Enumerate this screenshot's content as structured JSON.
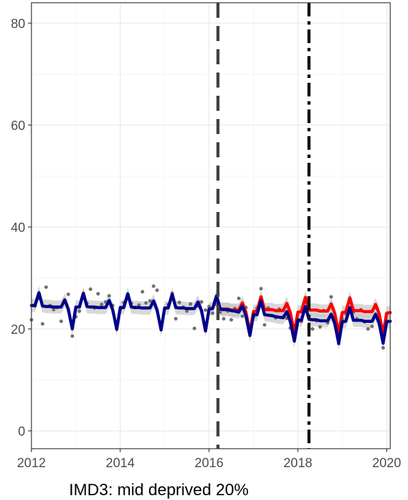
{
  "caption": "IMD3: mid deprived 20%",
  "colors": {
    "observed_points": "#707070",
    "counterfactual_line": "#ff0000",
    "fitted_line": "#00008b",
    "ci_band": "#c8c8c8",
    "vline_dashed": "#404040",
    "vline_dotdash": "#111111",
    "grid_major": "#ebebeb",
    "grid_minor": "#f5f5f5",
    "panel_border": "#333333"
  },
  "chart_data": {
    "type": "line",
    "title": "",
    "xlabel": "",
    "ylabel": "",
    "xlim": [
      2012.0,
      2020.08
    ],
    "ylim": [
      -3.5,
      84
    ],
    "x_ticks": [
      2012,
      2014,
      2016,
      2018,
      2020
    ],
    "x_tick_labels": [
      "2012",
      "2014",
      "2016",
      "2018",
      "2020"
    ],
    "y_ticks": [
      0,
      20,
      40,
      60,
      80
    ],
    "y_tick_labels": [
      "0",
      "20",
      "40",
      "60",
      "80"
    ],
    "grid": true,
    "legend": "none",
    "vlines": [
      {
        "x": 2016.2,
        "style": "dashed"
      },
      {
        "x": 2018.25,
        "style": "dotdash"
      }
    ],
    "observed_points": [
      [
        2012.0,
        21.8
      ],
      [
        2012.08,
        24.5
      ],
      [
        2012.17,
        26.0
      ],
      [
        2012.25,
        21.0
      ],
      [
        2012.33,
        28.2
      ],
      [
        2012.42,
        24.6
      ],
      [
        2012.5,
        23.8
      ],
      [
        2012.58,
        24.2
      ],
      [
        2012.67,
        21.5
      ],
      [
        2012.75,
        25.6
      ],
      [
        2012.83,
        26.8
      ],
      [
        2012.92,
        18.6
      ],
      [
        2013.0,
        22.4
      ],
      [
        2013.08,
        23.5
      ],
      [
        2013.17,
        26.2
      ],
      [
        2013.25,
        25.0
      ],
      [
        2013.33,
        27.8
      ],
      [
        2013.42,
        24.1
      ],
      [
        2013.5,
        26.9
      ],
      [
        2013.58,
        24.8
      ],
      [
        2013.67,
        25.3
      ],
      [
        2013.75,
        26.5
      ],
      [
        2013.83,
        24.6
      ],
      [
        2013.92,
        20.5
      ],
      [
        2014.0,
        23.8
      ],
      [
        2014.08,
        25.2
      ],
      [
        2014.17,
        26.1
      ],
      [
        2014.25,
        25.0
      ],
      [
        2014.33,
        24.2
      ],
      [
        2014.42,
        24.7
      ],
      [
        2014.5,
        27.3
      ],
      [
        2014.58,
        25.1
      ],
      [
        2014.67,
        25.5
      ],
      [
        2014.75,
        28.4
      ],
      [
        2014.83,
        27.6
      ],
      [
        2014.92,
        20.3
      ],
      [
        2015.0,
        23.9
      ],
      [
        2015.08,
        24.8
      ],
      [
        2015.17,
        27.0
      ],
      [
        2015.25,
        22.0
      ],
      [
        2015.33,
        25.2
      ],
      [
        2015.42,
        24.3
      ],
      [
        2015.5,
        23.5
      ],
      [
        2015.58,
        24.9
      ],
      [
        2015.67,
        20.1
      ],
      [
        2015.75,
        24.5
      ],
      [
        2015.83,
        25.3
      ],
      [
        2015.92,
        23.7
      ],
      [
        2016.0,
        24.4
      ],
      [
        2016.08,
        23.1
      ],
      [
        2016.17,
        24.8
      ],
      [
        2016.25,
        23.3
      ],
      [
        2016.33,
        22.0
      ],
      [
        2016.42,
        23.5
      ],
      [
        2016.5,
        21.8
      ],
      [
        2016.58,
        24.0
      ],
      [
        2016.67,
        26.0
      ],
      [
        2016.75,
        22.5
      ],
      [
        2016.83,
        24.2
      ],
      [
        2016.92,
        19.6
      ],
      [
        2017.0,
        22.3
      ],
      [
        2017.08,
        24.1
      ],
      [
        2017.17,
        27.9
      ],
      [
        2017.25,
        20.8
      ],
      [
        2017.33,
        24.1
      ],
      [
        2017.42,
        22.6
      ],
      [
        2017.5,
        22.2
      ],
      [
        2017.58,
        23.9
      ],
      [
        2017.67,
        22.4
      ],
      [
        2017.75,
        22.1
      ],
      [
        2017.83,
        20.2
      ],
      [
        2017.92,
        19.3
      ],
      [
        2018.0,
        22.0
      ],
      [
        2018.08,
        21.5
      ],
      [
        2018.17,
        25.5
      ],
      [
        2018.25,
        20.2
      ],
      [
        2018.33,
        20.0
      ],
      [
        2018.42,
        21.6
      ],
      [
        2018.5,
        20.4
      ],
      [
        2018.58,
        23.6
      ],
      [
        2018.67,
        21.2
      ],
      [
        2018.75,
        26.3
      ],
      [
        2018.83,
        22.0
      ],
      [
        2018.92,
        17.1
      ],
      [
        2019.0,
        21.9
      ],
      [
        2019.08,
        23.0
      ],
      [
        2019.17,
        23.9
      ],
      [
        2019.25,
        23.3
      ],
      [
        2019.33,
        22.0
      ],
      [
        2019.42,
        23.8
      ],
      [
        2019.5,
        21.4
      ],
      [
        2019.58,
        20.0
      ],
      [
        2019.67,
        20.5
      ],
      [
        2019.75,
        24.2
      ],
      [
        2019.83,
        22.5
      ],
      [
        2019.92,
        16.3
      ],
      [
        2020.0,
        21.6
      ]
    ],
    "series": [
      {
        "color": "#ff0000",
        "points": [
          [
            2016.17,
            26.1
          ],
          [
            2016.25,
            24.0
          ],
          [
            2016.33,
            23.9
          ],
          [
            2016.42,
            23.9
          ],
          [
            2016.5,
            23.7
          ],
          [
            2016.58,
            23.7
          ],
          [
            2016.67,
            23.7
          ],
          [
            2016.75,
            25.1
          ],
          [
            2016.83,
            23.3
          ],
          [
            2016.92,
            19.3
          ],
          [
            2017.0,
            23.4
          ],
          [
            2017.08,
            23.5
          ],
          [
            2017.17,
            26.3
          ],
          [
            2017.25,
            23.8
          ],
          [
            2017.33,
            23.8
          ],
          [
            2017.42,
            23.8
          ],
          [
            2017.5,
            23.6
          ],
          [
            2017.58,
            23.6
          ],
          [
            2017.67,
            23.6
          ],
          [
            2017.75,
            25.0
          ],
          [
            2017.83,
            23.2
          ],
          [
            2017.92,
            19.2
          ],
          [
            2018.0,
            23.3
          ],
          [
            2018.08,
            23.4
          ],
          [
            2018.17,
            26.2
          ],
          [
            2018.25,
            23.7
          ],
          [
            2018.33,
            23.7
          ],
          [
            2018.42,
            23.7
          ],
          [
            2018.5,
            23.5
          ],
          [
            2018.58,
            23.5
          ],
          [
            2018.67,
            23.5
          ],
          [
            2018.75,
            24.9
          ],
          [
            2018.83,
            23.1
          ],
          [
            2018.92,
            19.1
          ],
          [
            2019.0,
            23.2
          ],
          [
            2019.08,
            23.3
          ],
          [
            2019.17,
            26.1
          ],
          [
            2019.25,
            23.6
          ],
          [
            2019.33,
            23.6
          ],
          [
            2019.42,
            23.6
          ],
          [
            2019.5,
            23.4
          ],
          [
            2019.58,
            23.4
          ],
          [
            2019.67,
            23.4
          ],
          [
            2019.75,
            24.8
          ],
          [
            2019.83,
            23.0
          ],
          [
            2019.92,
            19.0
          ],
          [
            2020.0,
            23.1
          ],
          [
            2020.08,
            23.2
          ]
        ]
      },
      {
        "color": "#00008b",
        "points": [
          [
            2012.0,
            24.6
          ],
          [
            2012.08,
            24.6
          ],
          [
            2012.17,
            27.1
          ],
          [
            2012.25,
            24.5
          ],
          [
            2012.33,
            24.4
          ],
          [
            2012.42,
            24.4
          ],
          [
            2012.5,
            24.3
          ],
          [
            2012.58,
            24.3
          ],
          [
            2012.67,
            24.3
          ],
          [
            2012.75,
            25.7
          ],
          [
            2012.83,
            23.9
          ],
          [
            2012.92,
            20.0
          ],
          [
            2013.0,
            24.3
          ],
          [
            2013.08,
            24.3
          ],
          [
            2013.17,
            27.0
          ],
          [
            2013.25,
            24.4
          ],
          [
            2013.33,
            24.3
          ],
          [
            2013.42,
            24.3
          ],
          [
            2013.5,
            24.2
          ],
          [
            2013.58,
            24.2
          ],
          [
            2013.67,
            24.2
          ],
          [
            2013.75,
            25.6
          ],
          [
            2013.83,
            23.8
          ],
          [
            2013.92,
            19.9
          ],
          [
            2014.0,
            24.2
          ],
          [
            2014.08,
            24.2
          ],
          [
            2014.17,
            26.9
          ],
          [
            2014.25,
            24.3
          ],
          [
            2014.33,
            24.2
          ],
          [
            2014.42,
            24.2
          ],
          [
            2014.5,
            24.1
          ],
          [
            2014.58,
            24.1
          ],
          [
            2014.67,
            24.1
          ],
          [
            2014.75,
            25.5
          ],
          [
            2014.83,
            23.7
          ],
          [
            2014.92,
            19.8
          ],
          [
            2015.0,
            24.1
          ],
          [
            2015.08,
            24.1
          ],
          [
            2015.17,
            26.8
          ],
          [
            2015.25,
            24.2
          ],
          [
            2015.33,
            24.1
          ],
          [
            2015.42,
            24.1
          ],
          [
            2015.5,
            24.0
          ],
          [
            2015.58,
            24.0
          ],
          [
            2015.67,
            24.0
          ],
          [
            2015.75,
            25.3
          ],
          [
            2015.83,
            23.6
          ],
          [
            2015.92,
            19.6
          ],
          [
            2016.0,
            23.9
          ],
          [
            2016.08,
            24.0
          ],
          [
            2016.17,
            26.5
          ],
          [
            2016.25,
            23.9
          ],
          [
            2016.33,
            23.8
          ],
          [
            2016.42,
            23.8
          ],
          [
            2016.5,
            23.6
          ],
          [
            2016.58,
            23.5
          ],
          [
            2016.67,
            23.3
          ],
          [
            2016.75,
            24.5
          ],
          [
            2016.83,
            22.6
          ],
          [
            2016.92,
            18.7
          ],
          [
            2017.0,
            22.8
          ],
          [
            2017.08,
            22.8
          ],
          [
            2017.17,
            25.5
          ],
          [
            2017.25,
            22.8
          ],
          [
            2017.33,
            22.7
          ],
          [
            2017.42,
            22.6
          ],
          [
            2017.5,
            22.4
          ],
          [
            2017.58,
            22.3
          ],
          [
            2017.67,
            22.2
          ],
          [
            2017.75,
            23.4
          ],
          [
            2017.83,
            21.5
          ],
          [
            2017.92,
            17.6
          ],
          [
            2018.0,
            21.7
          ],
          [
            2018.08,
            21.7
          ],
          [
            2018.17,
            24.4
          ],
          [
            2018.25,
            21.9
          ],
          [
            2018.33,
            21.8
          ],
          [
            2018.42,
            21.8
          ],
          [
            2018.5,
            21.6
          ],
          [
            2018.58,
            21.6
          ],
          [
            2018.67,
            21.6
          ],
          [
            2018.75,
            22.9
          ],
          [
            2018.83,
            21.1
          ],
          [
            2018.92,
            17.2
          ],
          [
            2019.0,
            21.4
          ],
          [
            2019.08,
            21.5
          ],
          [
            2019.17,
            24.2
          ],
          [
            2019.25,
            21.7
          ],
          [
            2019.33,
            21.7
          ],
          [
            2019.42,
            21.7
          ],
          [
            2019.5,
            21.5
          ],
          [
            2019.58,
            21.5
          ],
          [
            2019.67,
            21.5
          ],
          [
            2019.75,
            22.9
          ],
          [
            2019.83,
            21.1
          ],
          [
            2019.92,
            17.2
          ],
          [
            2020.0,
            21.4
          ],
          [
            2020.08,
            21.5
          ]
        ]
      }
    ]
  }
}
